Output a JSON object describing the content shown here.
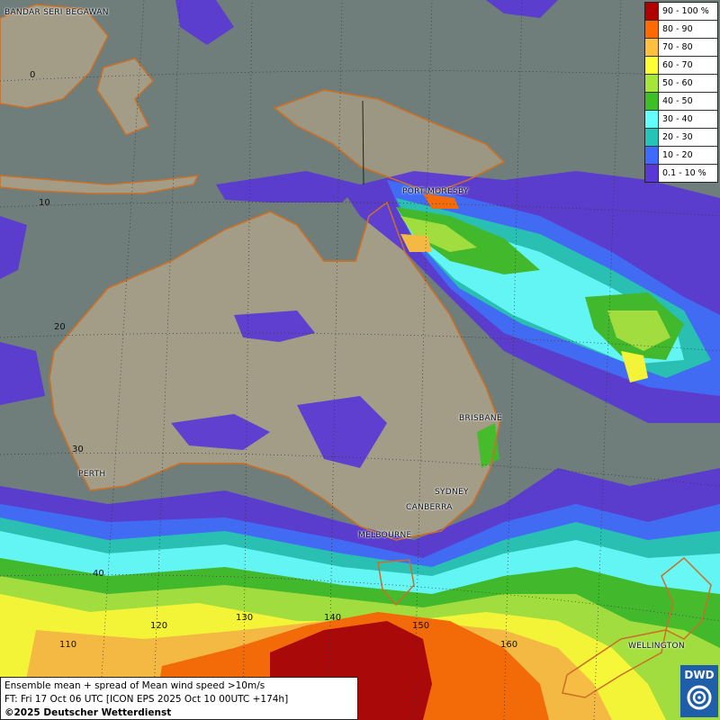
{
  "legend": {
    "items": [
      {
        "label": "90 - 100 %",
        "color": "#b00000"
      },
      {
        "label": "80 - 90",
        "color": "#ff6a00"
      },
      {
        "label": "70 - 80",
        "color": "#ffbf3f"
      },
      {
        "label": "60 - 70",
        "color": "#ffff33"
      },
      {
        "label": "50 - 60",
        "color": "#a6e63a"
      },
      {
        "label": "40 - 50",
        "color": "#3fbf26"
      },
      {
        "label": "30 - 40",
        "color": "#63ffff"
      },
      {
        "label": "20 - 30",
        "color": "#24c5b8"
      },
      {
        "label": "10 - 20",
        "color": "#3f6aff"
      },
      {
        "label": "0.1 - 10 %",
        "color": "#5a38d6"
      }
    ]
  },
  "cities": {
    "bandar": "BANDAR SERI BEGAWAN",
    "port_moresby": "PORT MORESBY",
    "brisbane": "BRISBANE",
    "perth": "PERTH",
    "sydney": "SYDNEY",
    "canberra": "CANBERRA",
    "melbourne": "MELBOURNE",
    "wellington": "WELLINGTON"
  },
  "grid": {
    "lat_0": "0",
    "lat_10": "10",
    "lat_20": "20",
    "lat_30": "30",
    "lat_40": "40",
    "lon_110": "110",
    "lon_120": "120",
    "lon_130": "130",
    "lon_140": "140",
    "lon_150": "150",
    "lon_160": "160"
  },
  "info": {
    "line1": "Ensemble mean + spread of Mean wind speed >10m/s",
    "line2": "FT: Fri 17 Oct 06 UTC [ICON EPS 2025 Oct 10 00UTC +174h]",
    "line3": "©2025 Deutscher Wetterdienst"
  },
  "logo": {
    "text": "DWD"
  },
  "colors": {
    "ocean": "#6f7e7b",
    "land": "#a39c86",
    "coast": "#c87028"
  }
}
